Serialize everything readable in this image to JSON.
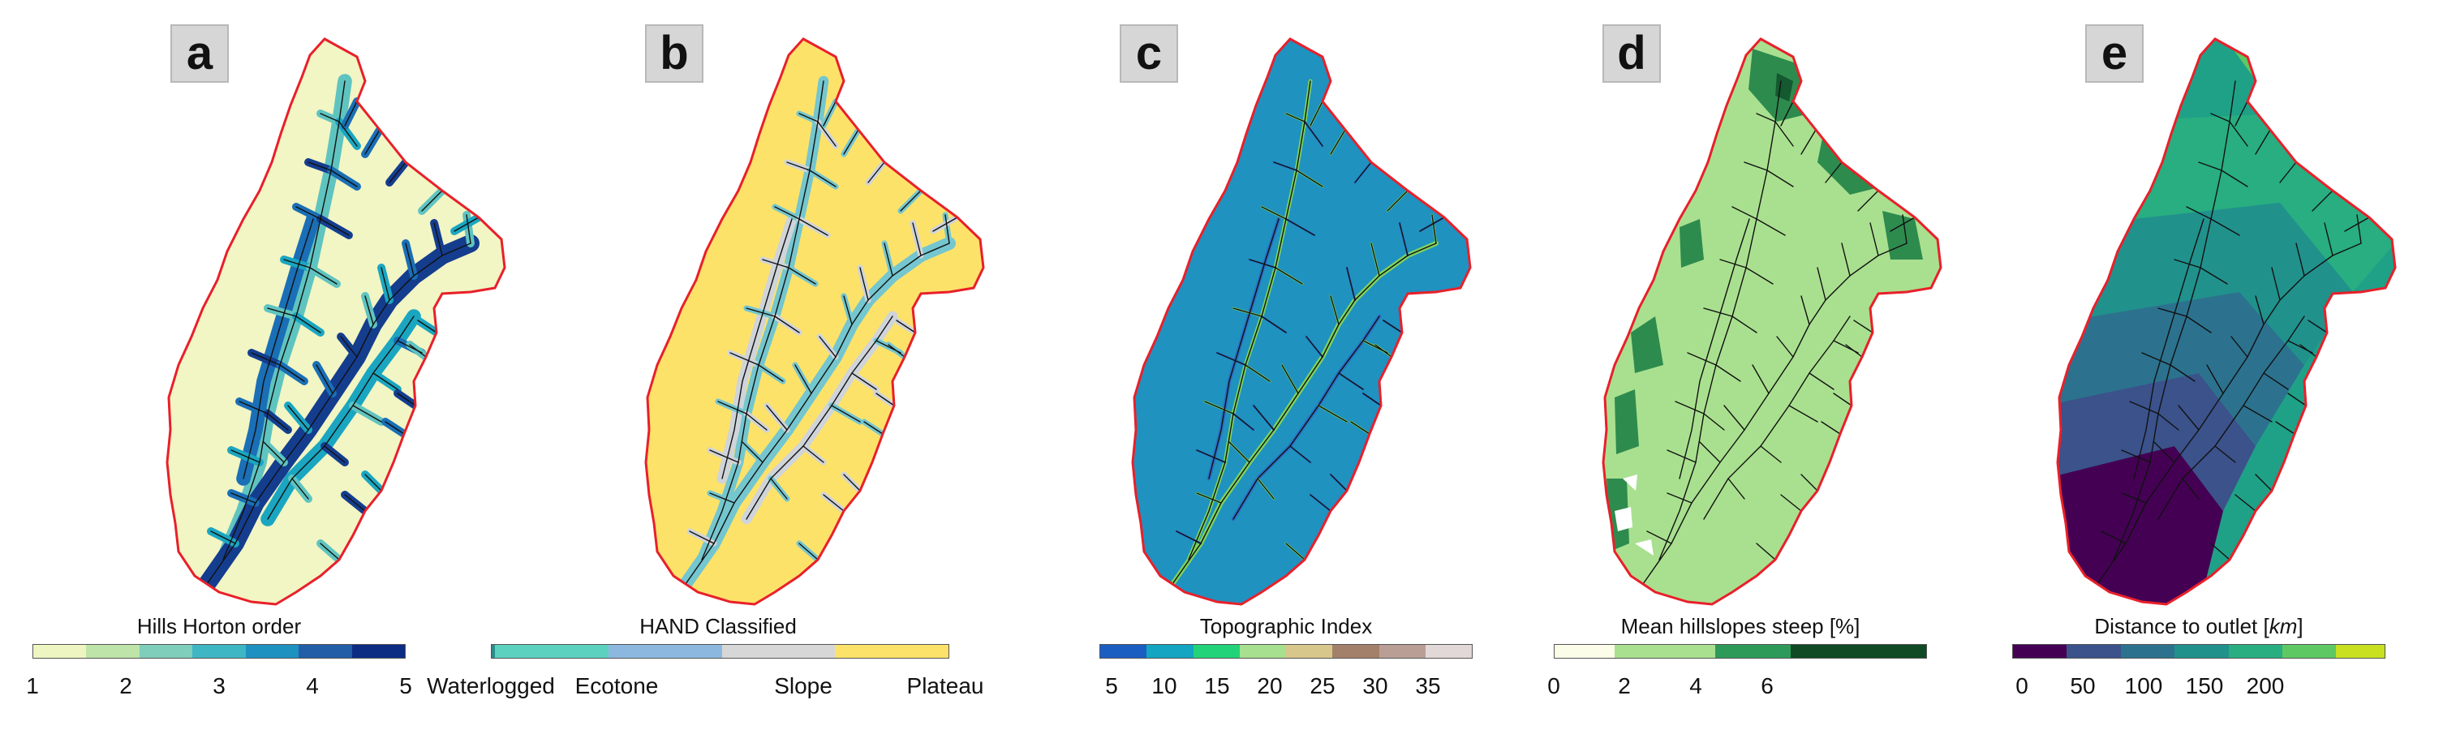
{
  "panels": [
    {
      "letter": "a",
      "colorbar_title": "Hills Horton order",
      "fill": "#f2f5c4",
      "stream_colors": [
        "#5fc4c0",
        "#1aa6c1",
        "#1a6fb6",
        "#143d8e"
      ],
      "ticks": [
        "1",
        "2",
        "3",
        "4",
        "5"
      ],
      "segments": [
        "#eef5c0",
        "#bfe4a9",
        "#7fcdbb",
        "#3fb6c4",
        "#1d91c0",
        "#225ea8",
        "#0c2c84"
      ]
    },
    {
      "letter": "b",
      "colorbar_title": "HAND Classified",
      "fill": "#fde26a",
      "stream_colors": [
        "#74c6cf",
        "#cfd4da"
      ],
      "ticks": [
        "Waterlogged",
        "Ecotone",
        "Slope",
        "Plateau"
      ],
      "segments": [
        "#2b8c8c",
        "#5dd1c0",
        "#8cb8e0",
        "#d7d7d7",
        "#fde26a"
      ]
    },
    {
      "letter": "c",
      "colorbar_title": "Topographic Index",
      "fill": "#1f92c0",
      "stream_colors": [
        "#7fd35d",
        "#2a6fc4"
      ],
      "ticks": [
        "5",
        "10",
        "15",
        "20",
        "25",
        "30",
        "35"
      ],
      "segments": [
        "#1b5ec2",
        "#13a5c1",
        "#23d37a",
        "#a7e08f",
        "#d8c78a",
        "#a3806a",
        "#b89e95",
        "#e3d8d8"
      ]
    },
    {
      "letter": "d",
      "colorbar_title": "Mean hillslopes steep [%]",
      "fill": "#a9e08f",
      "stream_colors": [
        "#2e8b4e",
        "#14592f"
      ],
      "ticks": [
        "0",
        "2",
        "4",
        "6"
      ],
      "segments": [
        "#fbfde8",
        "#a9e08f",
        "#2e9a5a",
        "#0f4a25"
      ]
    },
    {
      "letter": "e",
      "colorbar_title": "Distance to outlet [km]",
      "fill": "#1fa187",
      "stream_colors": [
        "#2c728e",
        "#3b528b",
        "#472d7b",
        "#6ece58"
      ],
      "ticks": [
        "0",
        "50",
        "100",
        "150",
        "200"
      ],
      "segments": [
        "#440154",
        "#3b528b",
        "#2c728e",
        "#21918c",
        "#28ae80",
        "#5ec962",
        "#c8e020"
      ]
    }
  ]
}
